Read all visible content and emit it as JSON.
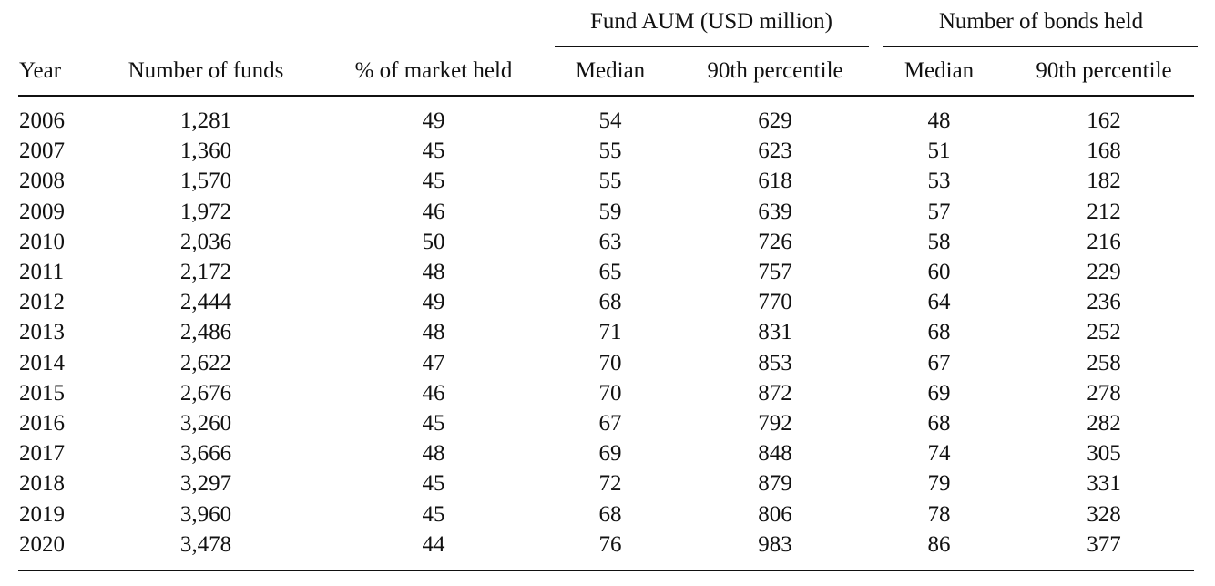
{
  "table": {
    "group_headers": [
      "Fund AUM (USD million)",
      "Number of bonds held"
    ],
    "columns": [
      "Year",
      "Number of funds",
      "% of market held",
      "Median",
      "90th percentile",
      "Median",
      "90th percentile"
    ],
    "rows": [
      [
        "2006",
        "1,281",
        "49",
        "54",
        "629",
        "48",
        "162"
      ],
      [
        "2007",
        "1,360",
        "45",
        "55",
        "623",
        "51",
        "168"
      ],
      [
        "2008",
        "1,570",
        "45",
        "55",
        "618",
        "53",
        "182"
      ],
      [
        "2009",
        "1,972",
        "46",
        "59",
        "639",
        "57",
        "212"
      ],
      [
        "2010",
        "2,036",
        "50",
        "63",
        "726",
        "58",
        "216"
      ],
      [
        "2011",
        "2,172",
        "48",
        "65",
        "757",
        "60",
        "229"
      ],
      [
        "2012",
        "2,444",
        "49",
        "68",
        "770",
        "64",
        "236"
      ],
      [
        "2013",
        "2,486",
        "48",
        "71",
        "831",
        "68",
        "252"
      ],
      [
        "2014",
        "2,622",
        "47",
        "70",
        "853",
        "67",
        "258"
      ],
      [
        "2015",
        "2,676",
        "46",
        "70",
        "872",
        "69",
        "278"
      ],
      [
        "2016",
        "3,260",
        "45",
        "67",
        "792",
        "68",
        "282"
      ],
      [
        "2017",
        "3,666",
        "48",
        "69",
        "848",
        "74",
        "305"
      ],
      [
        "2018",
        "3,297",
        "45",
        "72",
        "879",
        "79",
        "331"
      ],
      [
        "2019",
        "3,960",
        "45",
        "68",
        "806",
        "78",
        "328"
      ],
      [
        "2020",
        "3,478",
        "44",
        "76",
        "983",
        "86",
        "377"
      ]
    ]
  }
}
